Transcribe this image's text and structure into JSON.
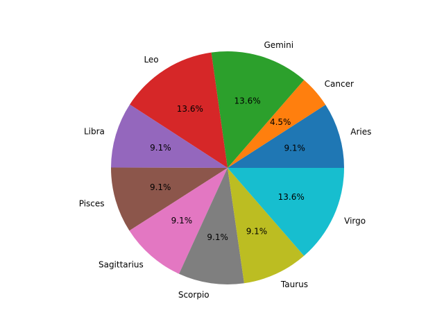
{
  "chart_data": {
    "type": "pie",
    "title": "",
    "start_angle_deg": 0,
    "direction": "counterclockwise",
    "slices": [
      {
        "label": "Aries",
        "value": 9.1,
        "pct_label": "9.1%",
        "color": "#1f77b4"
      },
      {
        "label": "Cancer",
        "value": 4.5,
        "pct_label": "4.5%",
        "color": "#ff7f0e"
      },
      {
        "label": "Gemini",
        "value": 13.6,
        "pct_label": "13.6%",
        "color": "#2ca02c"
      },
      {
        "label": "Leo",
        "value": 13.6,
        "pct_label": "13.6%",
        "color": "#d62728"
      },
      {
        "label": "Libra",
        "value": 9.1,
        "pct_label": "9.1%",
        "color": "#9467bd"
      },
      {
        "label": "Pisces",
        "value": 9.1,
        "pct_label": "9.1%",
        "color": "#8c564b"
      },
      {
        "label": "Sagittarius",
        "value": 9.1,
        "pct_label": "9.1%",
        "color": "#e377c2"
      },
      {
        "label": "Scorpio",
        "value": 9.1,
        "pct_label": "9.1%",
        "color": "#7f7f7f"
      },
      {
        "label": "Taurus",
        "value": 9.1,
        "pct_label": "9.1%",
        "color": "#bcbd22"
      },
      {
        "label": "Virgo",
        "value": 13.6,
        "pct_label": "13.6%",
        "color": "#17becf"
      }
    ]
  }
}
